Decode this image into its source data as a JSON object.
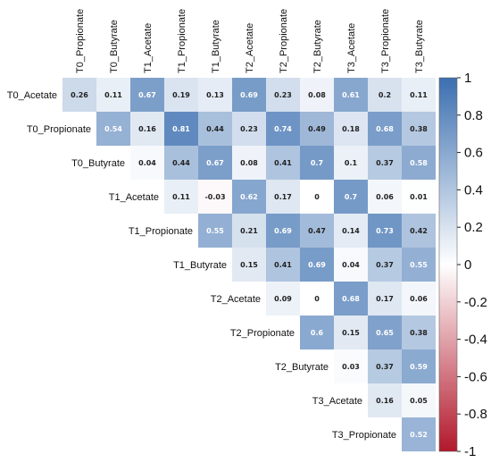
{
  "chart_data": {
    "type": "heatmap",
    "title": "",
    "subtitle": "",
    "shape": "upper-triangular correlation matrix",
    "rows": [
      "T0_Acetate",
      "T0_Propionate",
      "T0_Butyrate",
      "T1_Acetate",
      "T1_Propionate",
      "T1_Butyrate",
      "T2_Acetate",
      "T2_Propionate",
      "T2_Butyrate",
      "T3_Acetate",
      "T3_Propionate"
    ],
    "columns": [
      "T0_Propionate",
      "T0_Butyrate",
      "T1_Acetate",
      "T1_Propionate",
      "T1_Butyrate",
      "T2_Acetate",
      "T2_Propionate",
      "T2_Butyrate",
      "T3_Acetate",
      "T3_Propionate",
      "T3_Butyrate"
    ],
    "values": [
      [
        0.26,
        0.11,
        0.67,
        0.19,
        0.13,
        0.69,
        0.23,
        0.08,
        0.61,
        0.2,
        0.11
      ],
      [
        null,
        0.54,
        0.16,
        0.81,
        0.44,
        0.23,
        0.74,
        0.49,
        0.18,
        0.68,
        0.38
      ],
      [
        null,
        null,
        0.04,
        0.44,
        0.67,
        0.08,
        0.41,
        0.7,
        0.1,
        0.37,
        0.58
      ],
      [
        null,
        null,
        null,
        0.11,
        -0.03,
        0.62,
        0.17,
        0,
        0.7,
        0.06,
        0.01
      ],
      [
        null,
        null,
        null,
        null,
        0.55,
        0.21,
        0.69,
        0.47,
        0.14,
        0.73,
        0.42
      ],
      [
        null,
        null,
        null,
        null,
        null,
        0.15,
        0.41,
        0.69,
        0.04,
        0.37,
        0.55
      ],
      [
        null,
        null,
        null,
        null,
        null,
        null,
        0.09,
        0,
        0.68,
        0.17,
        0.06
      ],
      [
        null,
        null,
        null,
        null,
        null,
        null,
        null,
        0.6,
        0.15,
        0.65,
        0.38
      ],
      [
        null,
        null,
        null,
        null,
        null,
        null,
        null,
        null,
        0.03,
        0.37,
        0.59
      ],
      [
        null,
        null,
        null,
        null,
        null,
        null,
        null,
        null,
        null,
        0.16,
        0.05
      ],
      [
        null,
        null,
        null,
        null,
        null,
        null,
        null,
        null,
        null,
        null,
        0.52
      ]
    ],
    "colorbar": {
      "range": [
        -1,
        1
      ],
      "ticks": [
        "1",
        "0.8",
        "0.6",
        "0.4",
        "0.2",
        "0",
        "-0.2",
        "-0.4",
        "-0.6",
        "-0.8",
        "-1"
      ],
      "colors": {
        "negative": "#b2182b",
        "neutral": "#ffffff",
        "positive": "#3b6fb0"
      }
    },
    "legend": "right",
    "grid": false
  }
}
